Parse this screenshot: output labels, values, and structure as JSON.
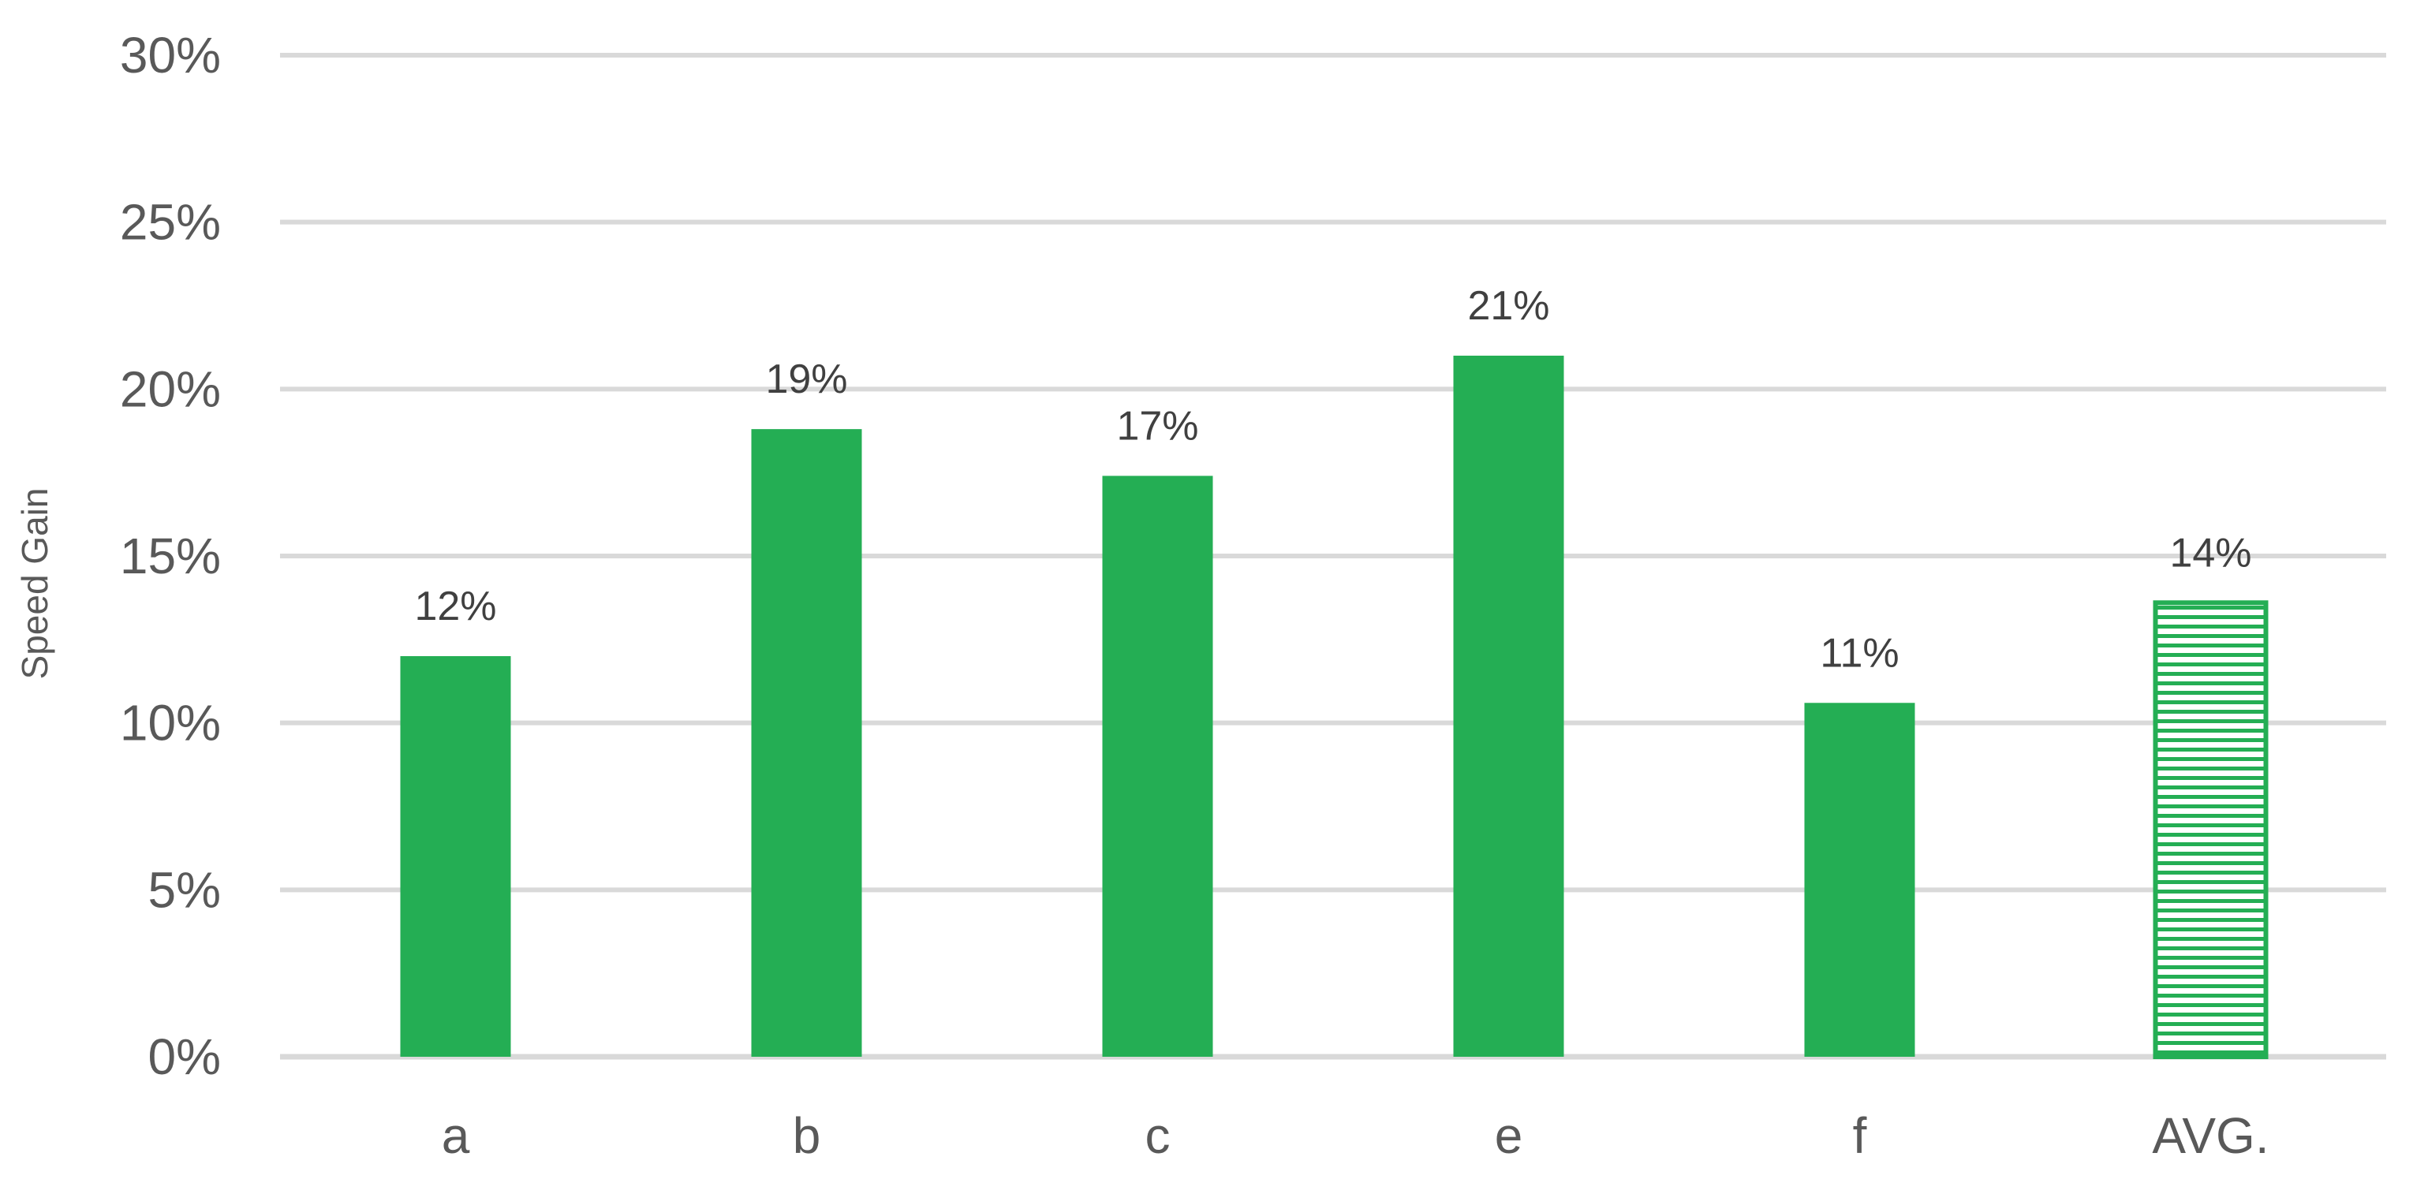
{
  "chart_data": {
    "type": "bar",
    "categories": [
      "a",
      "b",
      "c",
      "e",
      "f",
      "AVG."
    ],
    "values": [
      12,
      18.8,
      17.4,
      21.0,
      10.6,
      13.6
    ],
    "data_labels": [
      "12%",
      "19%",
      "17%",
      "21%",
      "11%",
      "14%"
    ],
    "ylabel": "Speed Gain",
    "ylim": [
      0,
      30
    ],
    "ytick_values": [
      0,
      5,
      10,
      15,
      20,
      25,
      30
    ],
    "ytick_labels": [
      "0%",
      "5%",
      "10%",
      "15%",
      "20%",
      "25%",
      "30%"
    ],
    "grid": true,
    "legend": "none",
    "colors": {
      "bar": "#24AE54",
      "grid": "#D9D9D9",
      "text": "#595959",
      "label": "#404040"
    },
    "patterned_categories": [
      "AVG."
    ]
  }
}
